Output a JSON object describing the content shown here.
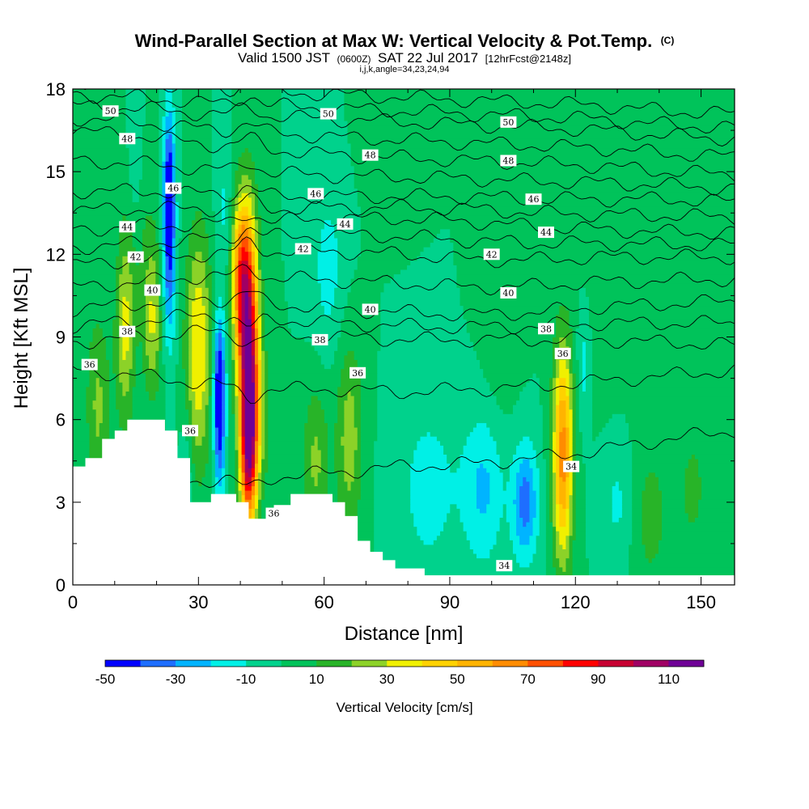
{
  "chart_data": {
    "type": "heatmap",
    "title": "Wind-Parallel Section at Max W: Vertical Velocity & Pot.Temp.",
    "title_mark": "(C)",
    "subtitle_parts": [
      "Valid 1500 JST",
      "(0600Z)",
      "SAT 22 Jul 2017",
      "[12hrFcst@2148z]"
    ],
    "subtitle2": "i,j,k,angle=34,23,24,94",
    "xlabel": "Distance [nm]",
    "ylabel": "Height [Kft MSL]",
    "xlim": [
      0,
      158
    ],
    "ylim": [
      0,
      18
    ],
    "x_ticks": [
      0,
      30,
      60,
      90,
      120,
      150
    ],
    "y_ticks": [
      0,
      3,
      6,
      9,
      12,
      15,
      18
    ],
    "colorbar": {
      "label": "Vertical Velocity [cm/s]",
      "range": [
        -50,
        120
      ],
      "tick_labels": [
        "-50",
        "-30",
        "-10",
        "10",
        "30",
        "50",
        "70",
        "90",
        "110"
      ],
      "tick_values": [
        -50,
        -30,
        -10,
        10,
        30,
        50,
        70,
        90,
        110
      ],
      "colors": [
        "#0000ff",
        "#1e6eff",
        "#00b4ff",
        "#00f0e6",
        "#00d28c",
        "#00c35a",
        "#28b428",
        "#8cd228",
        "#f0f000",
        "#ffd200",
        "#ffb400",
        "#ff8c00",
        "#ff5000",
        "#ff0000",
        "#c80032",
        "#a00064",
        "#6e0096"
      ]
    },
    "terrain": {
      "x": [
        0,
        3,
        3,
        7,
        7,
        10,
        10,
        13,
        13,
        22,
        22,
        25,
        25,
        28,
        28,
        33,
        33,
        39,
        39,
        42,
        42,
        48,
        48,
        52,
        52,
        62,
        62,
        65,
        65,
        68,
        68,
        71,
        71,
        74,
        74,
        77,
        77,
        84,
        84,
        158
      ],
      "y": [
        4.3,
        4.3,
        4.6,
        4.6,
        5.3,
        5.3,
        5.6,
        5.6,
        6.0,
        6.0,
        5.6,
        5.6,
        4.6,
        4.6,
        3.0,
        3.0,
        3.3,
        3.3,
        3.0,
        3.0,
        2.4,
        2.4,
        2.9,
        2.9,
        3.3,
        3.3,
        3.0,
        3.0,
        2.5,
        2.5,
        1.6,
        1.6,
        1.2,
        1.2,
        0.9,
        0.9,
        0.6,
        0.6,
        0.35,
        0.35
      ]
    },
    "w_features": [
      {
        "x": 42,
        "y": 8.2,
        "wx": 1.7,
        "wy": 3.4,
        "v": 100
      },
      {
        "x": 40,
        "y": 11.2,
        "wx": 1.6,
        "wy": 2.0,
        "v": 55
      },
      {
        "x": 42,
        "y": 5.0,
        "wx": 1.3,
        "wy": 2.0,
        "v": 60
      },
      {
        "x": 30,
        "y": 8.6,
        "wx": 2.2,
        "wy": 3.0,
        "v": 40
      },
      {
        "x": 12.5,
        "y": 9.2,
        "wx": 1.6,
        "wy": 2.4,
        "v": 32
      },
      {
        "x": 19,
        "y": 9.6,
        "wx": 1.6,
        "wy": 2.0,
        "v": 30
      },
      {
        "x": 117,
        "y": 4.8,
        "wx": 1.7,
        "wy": 2.8,
        "v": 65
      },
      {
        "x": 66,
        "y": 5.3,
        "wx": 2.2,
        "wy": 2.5,
        "v": 26
      },
      {
        "x": 58,
        "y": 4.5,
        "wx": 2.2,
        "wy": 2.0,
        "v": 22
      },
      {
        "x": 6,
        "y": 6.5,
        "wx": 2.0,
        "wy": 2.4,
        "v": 22
      },
      {
        "x": 23,
        "y": 14.3,
        "wx": 1.0,
        "wy": 2.2,
        "v": -48
      },
      {
        "x": 23,
        "y": 11.0,
        "wx": 1.2,
        "wy": 2.2,
        "v": -22
      },
      {
        "x": 35,
        "y": 6.2,
        "wx": 1.0,
        "wy": 2.0,
        "v": -48
      },
      {
        "x": 35,
        "y": 8.0,
        "wx": 1.0,
        "wy": 1.5,
        "v": -20
      },
      {
        "x": 36,
        "y": 13.5,
        "wx": 1.4,
        "wy": 2.0,
        "v": -12
      },
      {
        "x": 27,
        "y": 4.0,
        "wx": 1.0,
        "wy": 1.5,
        "v": -15
      },
      {
        "x": 108,
        "y": 3.0,
        "wx": 2.2,
        "wy": 1.5,
        "v": -35
      },
      {
        "x": 98,
        "y": 3.5,
        "wx": 3.5,
        "wy": 2.0,
        "v": -22
      },
      {
        "x": 85,
        "y": 3.5,
        "wx": 5.0,
        "wy": 2.2,
        "v": -15
      },
      {
        "x": 61,
        "y": 11.5,
        "wx": 2.8,
        "wy": 2.2,
        "v": -14
      },
      {
        "x": 122,
        "y": 8.0,
        "wx": 1.0,
        "wy": 1.5,
        "v": -14
      },
      {
        "x": 130,
        "y": 3.0,
        "wx": 2.5,
        "wy": 1.5,
        "v": -12
      },
      {
        "x": 15,
        "y": 15.5,
        "wx": 1.2,
        "wy": 2.0,
        "v": -12
      },
      {
        "x": 16,
        "y": 13.0,
        "wx": 3.0,
        "wy": 2.5,
        "v": 8
      },
      {
        "x": 138,
        "y": 2.5,
        "wx": 3.0,
        "wy": 2.0,
        "v": 14
      },
      {
        "x": 148,
        "y": 3.5,
        "wx": 3.0,
        "wy": 2.0,
        "v": 12
      },
      {
        "x": 128,
        "y": 13.0,
        "wx": 4.0,
        "wy": 3.5,
        "v": 8
      },
      {
        "x": 102,
        "y": 9.5,
        "wx": 3.0,
        "wy": 2.5,
        "v": 8
      },
      {
        "x": 145,
        "y": 11.0,
        "wx": 3.0,
        "wy": 2.0,
        "v": 6
      },
      {
        "x": 75,
        "y": 16.5,
        "wx": 4.0,
        "wy": 1.5,
        "v": 5
      },
      {
        "x": 45,
        "y": 6.0,
        "wx": 2.0,
        "wy": 2.0,
        "v": 14
      }
    ],
    "theta_contours": [
      {
        "value": 34,
        "y": [
          3.6,
          3.7,
          3.8,
          3.9,
          4.1,
          4.3,
          4.4,
          4.6,
          4.9,
          5.3,
          5.6
        ]
      },
      {
        "value": 36,
        "y": [
          7.8,
          7.6,
          7.3,
          7.1,
          7.1,
          7.0,
          7.1,
          7.2,
          7.4,
          7.6,
          7.8
        ]
      },
      {
        "value": 38,
        "y": [
          8.8,
          9.0,
          9.2,
          9.1,
          9.0,
          8.9,
          8.9,
          8.9,
          8.9,
          8.8,
          8.7
        ]
      },
      {
        "value": 40,
        "y": [
          10.0,
          10.2,
          10.4,
          10.2,
          10.0,
          9.9,
          9.8,
          9.9,
          10.1,
          10.2,
          10.3
        ]
      },
      {
        "value": 42,
        "y": [
          11.6,
          11.8,
          12.0,
          12.1,
          12.1,
          12.0,
          11.8,
          11.8,
          11.9,
          11.9,
          11.9
        ]
      },
      {
        "value": 44,
        "y": [
          12.9,
          13.0,
          13.1,
          13.2,
          13.3,
          13.3,
          13.2,
          13.0,
          12.9,
          12.8,
          12.8
        ]
      },
      {
        "value": 46,
        "y": [
          14.3,
          14.3,
          14.2,
          14.1,
          14.1,
          14.1,
          14.1,
          14.0,
          14.0,
          14.0,
          13.9
        ]
      },
      {
        "value": 48,
        "y": [
          16.5,
          16.3,
          16.0,
          15.8,
          15.6,
          15.5,
          15.4,
          15.3,
          15.2,
          15.0,
          14.9
        ]
      },
      {
        "value": 50,
        "y": [
          17.4,
          17.3,
          17.1,
          17.0,
          16.9,
          16.8,
          16.7,
          16.6,
          16.5,
          16.3,
          16.2
        ]
      }
    ],
    "contour_labels": [
      {
        "text": "50",
        "x": 9,
        "y": 17.2
      },
      {
        "text": "50",
        "x": 61,
        "y": 17.1
      },
      {
        "text": "50",
        "x": 104,
        "y": 16.8
      },
      {
        "text": "48",
        "x": 13,
        "y": 16.2
      },
      {
        "text": "48",
        "x": 71,
        "y": 15.6
      },
      {
        "text": "48",
        "x": 104,
        "y": 15.4
      },
      {
        "text": "46",
        "x": 24,
        "y": 14.4
      },
      {
        "text": "46",
        "x": 58,
        "y": 14.2
      },
      {
        "text": "46",
        "x": 110,
        "y": 14.0
      },
      {
        "text": "44",
        "x": 13,
        "y": 13.0
      },
      {
        "text": "44",
        "x": 65,
        "y": 13.1
      },
      {
        "text": "44",
        "x": 113,
        "y": 12.8
      },
      {
        "text": "42",
        "x": 15,
        "y": 11.9
      },
      {
        "text": "42",
        "x": 55,
        "y": 12.2
      },
      {
        "text": "42",
        "x": 100,
        "y": 12.0
      },
      {
        "text": "40",
        "x": 19,
        "y": 10.7
      },
      {
        "text": "40",
        "x": 71,
        "y": 10.0
      },
      {
        "text": "40",
        "x": 104,
        "y": 10.6
      },
      {
        "text": "38",
        "x": 13,
        "y": 9.2
      },
      {
        "text": "38",
        "x": 59,
        "y": 8.9
      },
      {
        "text": "38",
        "x": 113,
        "y": 9.3
      },
      {
        "text": "36",
        "x": 4,
        "y": 8.0
      },
      {
        "text": "36",
        "x": 68,
        "y": 7.7
      },
      {
        "text": "36",
        "x": 117,
        "y": 8.4
      },
      {
        "text": "36",
        "x": 28,
        "y": 5.6
      },
      {
        "text": "36",
        "x": 48,
        "y": 2.6
      },
      {
        "text": "34",
        "x": 119,
        "y": 4.3
      },
      {
        "text": "34",
        "x": 103,
        "y": 0.7
      }
    ]
  }
}
